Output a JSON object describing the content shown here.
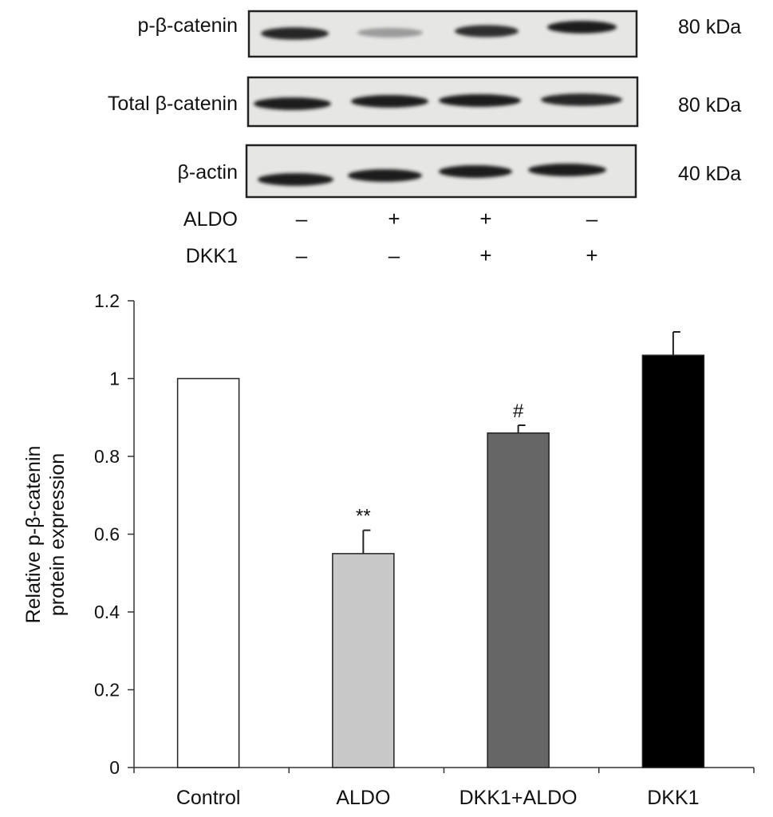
{
  "blot": {
    "rows": [
      {
        "label": "p-β-catenin",
        "size": "80 kDa",
        "intensity": [
          0.9,
          0.35,
          0.85,
          0.95
        ]
      },
      {
        "label": "Total β-catenin",
        "size": "80 kDa",
        "intensity": [
          0.95,
          0.95,
          0.95,
          0.9
        ]
      },
      {
        "label": "β-actin",
        "size": "40 kDa",
        "intensity": [
          0.95,
          0.95,
          0.95,
          0.95
        ]
      }
    ],
    "treatments": [
      {
        "label": "ALDO",
        "signs": [
          "–",
          "+",
          "+",
          "–"
        ]
      },
      {
        "label": "DKK1",
        "signs": [
          "–",
          "–",
          "+",
          "+"
        ]
      }
    ]
  },
  "chart_data": {
    "type": "bar",
    "categories": [
      "Control",
      "ALDO",
      "DKK1+ALDO",
      "DKK1"
    ],
    "values": [
      1.0,
      0.55,
      0.86,
      1.06
    ],
    "errors": [
      0,
      0.06,
      0.02,
      0.06
    ],
    "annotations": [
      "",
      "**",
      "#",
      ""
    ],
    "colors": [
      "#ffffff",
      "#c8c8c8",
      "#666666",
      "#000000"
    ],
    "ylabel": [
      "Relative p-β-catenin",
      "protein expression"
    ],
    "ylim": [
      0,
      1.2
    ],
    "yticks": [
      0,
      0.2,
      0.4,
      0.6,
      0.8,
      1,
      1.2
    ],
    "ytick_labels": [
      "0",
      "0.2",
      "0.4",
      "0.6",
      "0.8",
      "1",
      "1.2"
    ],
    "grid": false
  }
}
